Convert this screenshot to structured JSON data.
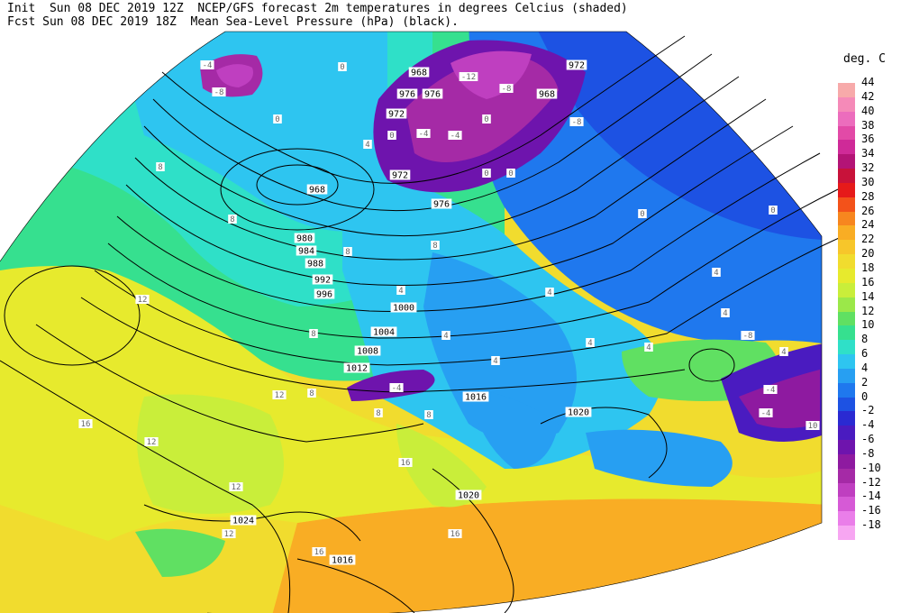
{
  "header": {
    "line1": "Init  Sun 08 DEC 2019 12Z  NCEP/GFS forecast 2m temperatures in degrees Celcius (shaded)",
    "line2": "Fcst Sun 08 DEC 2019 18Z  Mean Sea-Level Pressure (hPa) (black)."
  },
  "legend": {
    "title": "deg. C",
    "labels": [
      "44",
      "42",
      "40",
      "38",
      "36",
      "34",
      "32",
      "30",
      "28",
      "26",
      "24",
      "22",
      "20",
      "18",
      "16",
      "14",
      "12",
      "10",
      "8",
      "6",
      "4",
      "2",
      "0",
      "-2",
      "-4",
      "-6",
      "-8",
      "-10",
      "-12",
      "-14",
      "-16",
      "-18"
    ],
    "colors": [
      "#f7aaaa",
      "#f58ab8",
      "#ec6dbd",
      "#e24aa7",
      "#cf2a98",
      "#b31476",
      "#c8123a",
      "#e61a1a",
      "#f3521a",
      "#f7861f",
      "#f9ad24",
      "#f7c62a",
      "#f1dc2e",
      "#e7ea2d",
      "#c9ee3a",
      "#9be849",
      "#60e062",
      "#36e08f",
      "#2fe0c8",
      "#2ec5f0",
      "#279ff2",
      "#1f78ee",
      "#1d52e3",
      "#2a2ad2",
      "#4a1bc0",
      "#6e14ad",
      "#8e1aa0",
      "#a52aa6",
      "#bf3fc0",
      "#d65ad6",
      "#ea7ee9",
      "#f7a6f2"
    ]
  },
  "isobar_labels": [
    {
      "text": "968"
    },
    {
      "text": "972"
    },
    {
      "text": "976"
    },
    {
      "text": "972"
    },
    {
      "text": "976"
    },
    {
      "text": "968"
    },
    {
      "text": "972"
    },
    {
      "text": "968"
    },
    {
      "text": "976"
    },
    {
      "text": "980"
    },
    {
      "text": "984"
    },
    {
      "text": "988"
    },
    {
      "text": "992"
    },
    {
      "text": "996"
    },
    {
      "text": "1000"
    },
    {
      "text": "1004"
    },
    {
      "text": "1008"
    },
    {
      "text": "1012"
    },
    {
      "text": "1016"
    },
    {
      "text": "1020"
    },
    {
      "text": "1020"
    },
    {
      "text": "1024"
    },
    {
      "text": "1016"
    }
  ],
  "temp_labels": [
    {
      "text": "-4"
    },
    {
      "text": "-8"
    },
    {
      "text": "-12"
    },
    {
      "text": "-8"
    },
    {
      "text": "-4"
    },
    {
      "text": "-4"
    },
    {
      "text": "-8"
    },
    {
      "text": "-4"
    },
    {
      "text": "-4"
    },
    {
      "text": "-4"
    },
    {
      "text": "-8"
    },
    {
      "text": "0"
    },
    {
      "text": "0"
    },
    {
      "text": "0"
    },
    {
      "text": "0"
    },
    {
      "text": "0"
    },
    {
      "text": "0"
    },
    {
      "text": "0"
    },
    {
      "text": "0"
    },
    {
      "text": "4"
    },
    {
      "text": "4"
    },
    {
      "text": "4"
    },
    {
      "text": "4"
    },
    {
      "text": "4"
    },
    {
      "text": "4"
    },
    {
      "text": "4"
    },
    {
      "text": "4"
    },
    {
      "text": "4"
    },
    {
      "text": "4"
    },
    {
      "text": "8"
    },
    {
      "text": "8"
    },
    {
      "text": "8"
    },
    {
      "text": "8"
    },
    {
      "text": "8"
    },
    {
      "text": "8"
    },
    {
      "text": "8"
    },
    {
      "text": "8"
    },
    {
      "text": "12"
    },
    {
      "text": "12"
    },
    {
      "text": "12"
    },
    {
      "text": "12"
    },
    {
      "text": "12"
    },
    {
      "text": "16"
    },
    {
      "text": "16"
    },
    {
      "text": "16"
    },
    {
      "text": "16"
    },
    {
      "text": "10"
    }
  ]
}
